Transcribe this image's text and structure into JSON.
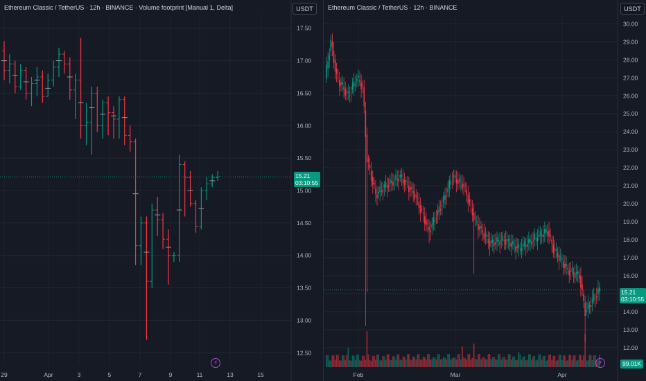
{
  "left_panel": {
    "legend": "Ethereum Classic / TetherUS · 12h · BINANCE · Volume footprint [Manual 1, Delta]",
    "currency_button": "USDT",
    "last_price": "15.21",
    "countdown": "03:10:55",
    "bolt_icon": "lightning-icon",
    "colors": {
      "up": "#089981",
      "down": "#f23645"
    }
  },
  "right_panel": {
    "legend": "Ethereum Classic / TetherUS · 12h · BINANCE",
    "currency_button": "USDT",
    "last_price": "15.21",
    "countdown": "03:10:55",
    "volume_label": "99.01K",
    "bolt_icon": "lightning-icon"
  },
  "chart_data": [
    {
      "type": "candlestick",
      "y_ticks": [
        "17.50",
        "17.00",
        "16.50",
        "16.00",
        "15.50",
        "15.00",
        "14.50",
        "14.00",
        "13.50",
        "13.00",
        "12.50"
      ],
      "ylim": [
        12.3,
        17.7
      ],
      "x_ticks": [
        "29",
        "Apr",
        "3",
        "5",
        "7",
        "9",
        "11",
        "13",
        "15"
      ],
      "current_price": 15.21,
      "candles": [
        [
          17.15,
          17.3,
          16.7,
          16.85
        ],
        [
          16.85,
          17.1,
          16.65,
          16.95
        ],
        [
          16.95,
          17.0,
          16.5,
          16.6
        ],
        [
          16.6,
          16.95,
          16.55,
          16.85
        ],
        [
          16.85,
          16.9,
          16.4,
          16.5
        ],
        [
          16.5,
          16.75,
          16.3,
          16.65
        ],
        [
          16.65,
          16.9,
          16.45,
          16.75
        ],
        [
          16.75,
          16.85,
          16.35,
          16.45
        ],
        [
          16.45,
          16.8,
          16.45,
          16.7
        ],
        [
          16.7,
          17.0,
          16.6,
          16.9
        ],
        [
          16.9,
          17.2,
          16.75,
          17.1
        ],
        [
          17.1,
          17.15,
          16.8,
          16.95
        ],
        [
          16.95,
          17.05,
          16.4,
          16.55
        ],
        [
          16.55,
          16.8,
          16.1,
          16.7
        ],
        [
          16.7,
          17.35,
          15.8,
          16.0
        ],
        [
          16.0,
          16.35,
          15.7,
          16.05
        ],
        [
          16.05,
          16.6,
          15.55,
          16.5
        ],
        [
          16.5,
          16.6,
          15.9,
          16.0
        ],
        [
          16.0,
          16.4,
          15.8,
          16.35
        ],
        [
          16.35,
          16.45,
          15.85,
          16.2
        ],
        [
          16.2,
          16.3,
          15.8,
          16.1
        ],
        [
          16.1,
          16.45,
          15.8,
          16.4
        ],
        [
          16.4,
          16.45,
          15.7,
          15.85
        ],
        [
          15.85,
          16.0,
          15.6,
          15.75
        ],
        [
          15.75,
          15.8,
          13.85,
          14.15
        ],
        [
          14.15,
          14.6,
          13.85,
          14.5
        ],
        [
          14.5,
          14.6,
          12.7,
          13.6
        ],
        [
          13.6,
          14.8,
          13.5,
          14.7
        ],
        [
          14.7,
          14.9,
          14.3,
          14.55
        ],
        [
          14.55,
          14.65,
          14.1,
          14.25
        ],
        [
          14.25,
          14.4,
          13.55,
          14.0
        ],
        [
          14.0,
          14.05,
          13.9,
          14.0
        ],
        [
          14.0,
          15.55,
          13.9,
          15.4
        ],
        [
          15.4,
          15.45,
          14.6,
          15.2
        ],
        [
          15.2,
          15.3,
          14.75,
          14.8
        ],
        [
          14.8,
          14.85,
          14.35,
          14.45
        ],
        [
          14.45,
          15.05,
          14.4,
          15.0
        ],
        [
          15.0,
          15.2,
          14.85,
          15.1
        ],
        [
          15.1,
          15.25,
          15.05,
          15.2
        ],
        [
          15.2,
          15.3,
          15.15,
          15.21
        ]
      ]
    },
    {
      "type": "candlestick",
      "y_ticks": [
        "30.00",
        "29.00",
        "28.00",
        "27.00",
        "26.00",
        "25.00",
        "24.00",
        "23.00",
        "22.00",
        "21.00",
        "20.00",
        "19.00",
        "18.00",
        "17.00",
        "16.00",
        "15.00",
        "14.00",
        "13.00",
        "12.00"
      ],
      "ylim": [
        11.3,
        30.4
      ],
      "x_ticks": [
        "Feb",
        "Mar",
        "Apr"
      ],
      "current_price": 15.21,
      "volume_last": "99.01K",
      "segments": [
        [
          0,
          27.0
        ],
        [
          4,
          29.0
        ],
        [
          8,
          27.0
        ],
        [
          16,
          26.0
        ],
        [
          22,
          27.0
        ],
        [
          26,
          26.5
        ],
        [
          29,
          22.5
        ],
        [
          35,
          20.5
        ],
        [
          42,
          21.0
        ],
        [
          52,
          21.5
        ],
        [
          62,
          20.5
        ],
        [
          72,
          18.5
        ],
        [
          82,
          20.2
        ],
        [
          88,
          21.5
        ],
        [
          96,
          21.0
        ],
        [
          104,
          19.0
        ],
        [
          114,
          17.8
        ],
        [
          124,
          18.0
        ],
        [
          134,
          17.5
        ],
        [
          144,
          18.0
        ],
        [
          154,
          18.5
        ],
        [
          158,
          17.5
        ],
        [
          168,
          16.3
        ],
        [
          176,
          16.0
        ],
        [
          180,
          14.0
        ],
        [
          184,
          14.5
        ],
        [
          190,
          15.21
        ]
      ],
      "spikes": [
        [
          28,
          13.2
        ],
        [
          29,
          15.1
        ],
        [
          72,
          17.8
        ],
        [
          103,
          16.1
        ],
        [
          180,
          12.3
        ]
      ]
    }
  ]
}
